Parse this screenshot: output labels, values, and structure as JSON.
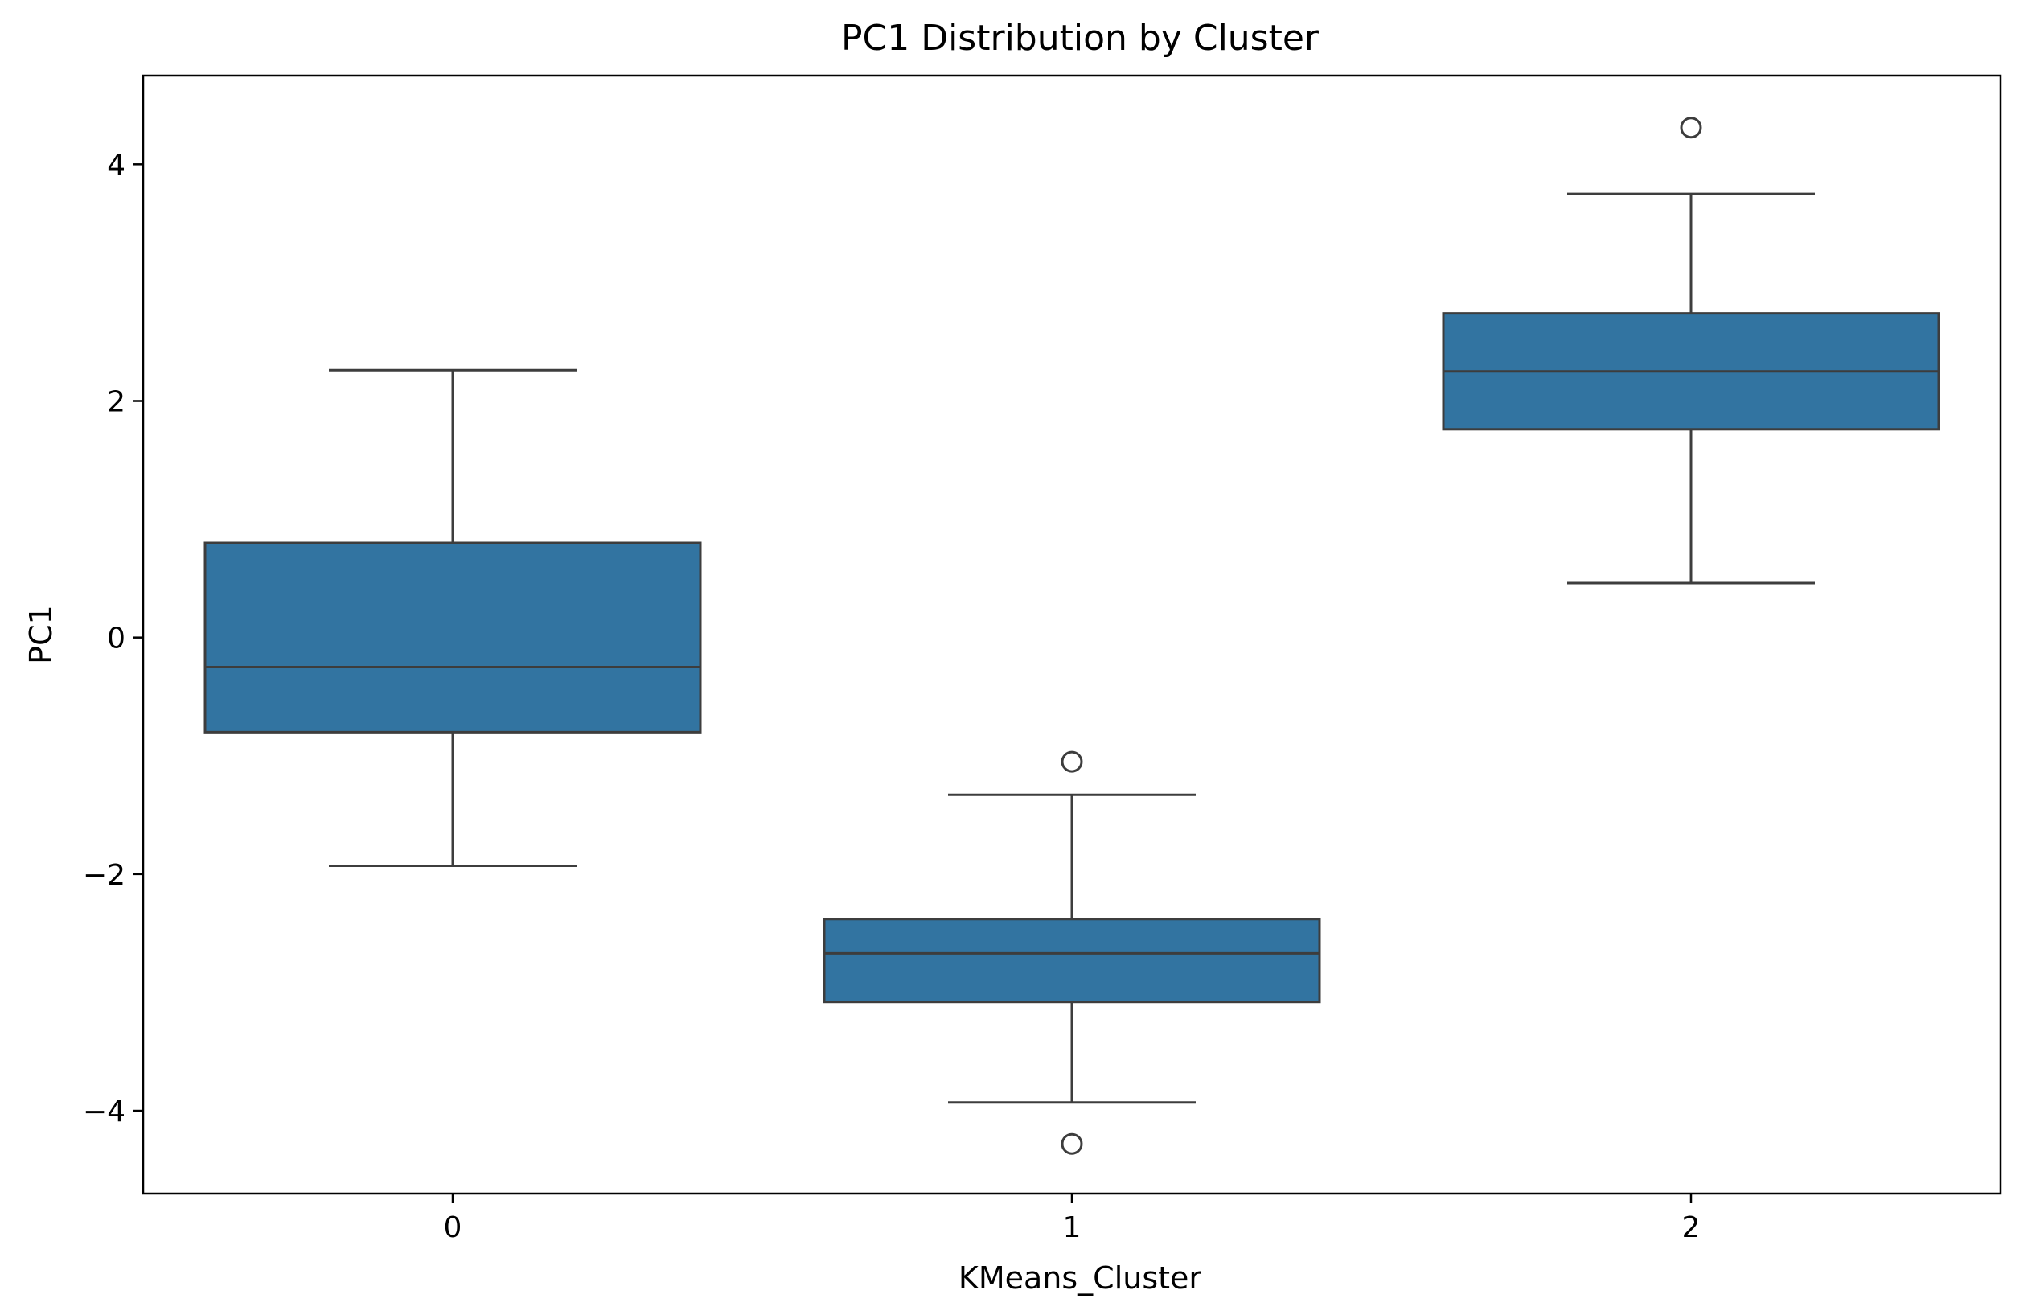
{
  "chart_data": {
    "type": "box",
    "title": "PC1 Distribution by Cluster",
    "xlabel": "KMeans_Cluster",
    "ylabel": "PC1",
    "categories": [
      "0",
      "1",
      "2"
    ],
    "ylim": [
      -4.7,
      4.75
    ],
    "yticks": [
      -4,
      -2,
      0,
      2,
      4
    ],
    "ytick_labels": [
      "−4",
      "−2",
      "0",
      "2",
      "4"
    ],
    "grid": false,
    "box_color": "#3274a1",
    "line_color": "#3d3d3d",
    "boxes": [
      {
        "category": "0",
        "whisker_low": -1.93,
        "q1": -0.8,
        "median": -0.25,
        "q3": 0.8,
        "whisker_high": 2.26,
        "outliers": []
      },
      {
        "category": "1",
        "whisker_low": -3.93,
        "q1": -3.08,
        "median": -2.67,
        "q3": -2.38,
        "whisker_high": -1.33,
        "outliers": [
          -1.05,
          -4.28
        ]
      },
      {
        "category": "2",
        "whisker_low": 0.46,
        "q1": 1.76,
        "median": 2.25,
        "q3": 2.74,
        "whisker_high": 3.75,
        "outliers": [
          4.31
        ]
      }
    ]
  }
}
